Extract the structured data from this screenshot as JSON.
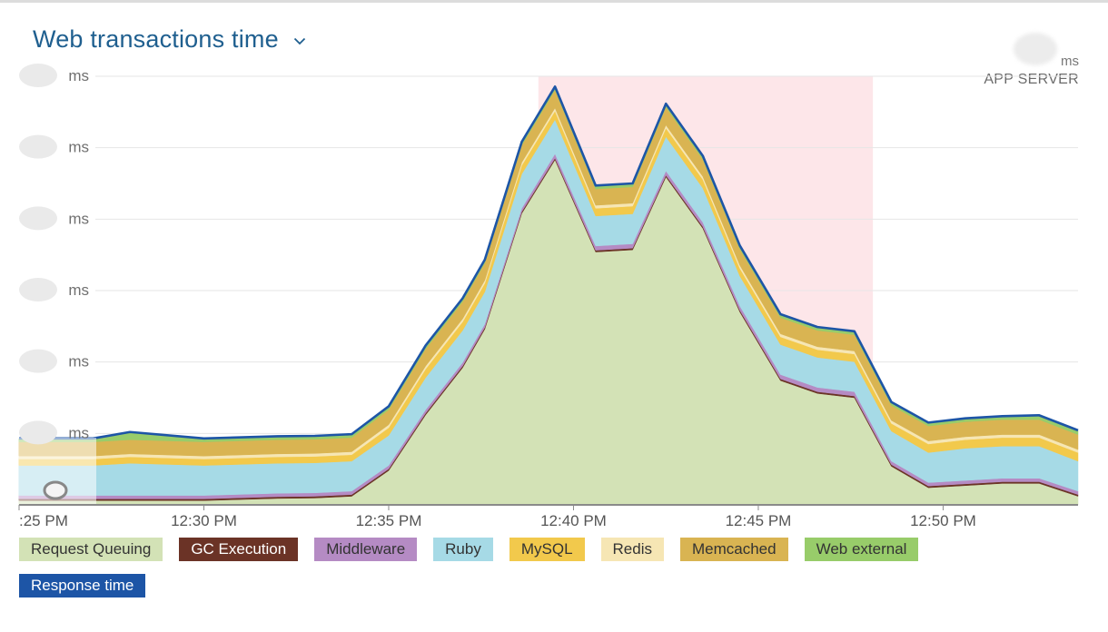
{
  "header": {
    "title": "Web transactions time",
    "summary_unit": "ms",
    "summary_label": "APP SERVER"
  },
  "chart_data": {
    "type": "area",
    "stacked": true,
    "title": "Web transactions time",
    "y_unit": "ms",
    "y_tick_count": 6,
    "x_tick_labels": [
      ":25 PM",
      "12:30 PM",
      "12:35 PM",
      "12:40 PM",
      "12:45 PM",
      "12:50 PM"
    ],
    "x_tick_minutes": [
      25,
      30,
      35,
      40,
      45,
      50
    ],
    "x_range_minutes": [
      25,
      53.65
    ],
    "ylim": [
      0,
      100
    ],
    "highlight_range_minutes": [
      39.05,
      48.1
    ],
    "grid": true,
    "legend_position": "bottom",
    "x_minutes": [
      25,
      27,
      28,
      30,
      32,
      33,
      34,
      35,
      36,
      37,
      37.6,
      38.6,
      39.5,
      40.6,
      41.6,
      42.5,
      43.5,
      44.5,
      45.6,
      46.6,
      47.6,
      48.6,
      49.6,
      50.6,
      51.6,
      52.6,
      53.65
    ],
    "series": [
      {
        "name": "Request Queuing",
        "color": "#d3e2b6",
        "values": [
          1,
          1,
          1,
          1,
          1.5,
          1.6,
          2,
          8,
          21,
          32,
          41,
          68,
          80.5,
          59,
          59.5,
          76.5,
          64.5,
          45,
          29,
          26,
          25,
          9,
          4,
          4.5,
          5,
          5,
          2
        ]
      },
      {
        "name": "GC Execution",
        "color": "#6b3326",
        "values": [
          0.4,
          0.4,
          0.4,
          0.4,
          0.4,
          0.4,
          0.4,
          0.4,
          0.4,
          0.4,
          0.4,
          0.4,
          0.4,
          0.4,
          0.4,
          0.4,
          0.4,
          0.4,
          0.4,
          0.4,
          0.4,
          0.4,
          0.4,
          0.4,
          0.4,
          0.4,
          0.4
        ]
      },
      {
        "name": "Middleware",
        "color": "#b58bc4",
        "values": [
          0.8,
          0.8,
          0.8,
          0.8,
          0.8,
          0.8,
          0.8,
          0.8,
          0.8,
          0.8,
          0.8,
          0.8,
          1,
          1,
          1,
          1,
          1,
          1,
          1,
          1,
          1,
          0.8,
          0.8,
          0.8,
          0.8,
          0.8,
          0.8
        ]
      },
      {
        "name": "Ruby",
        "color": "#a6dae6",
        "values": [
          7,
          7,
          7.5,
          7,
          7,
          7,
          7,
          7,
          7.5,
          7.5,
          7.5,
          8,
          8,
          7,
          7,
          8,
          8,
          7,
          7,
          7,
          7,
          7,
          7,
          7.5,
          7.5,
          7.5,
          7
        ]
      },
      {
        "name": "MySQL",
        "color": "#f2c94c",
        "values": [
          1.5,
          1.5,
          1.5,
          1.5,
          1.5,
          1.5,
          1.5,
          1.8,
          2,
          2,
          2,
          2,
          2,
          1.8,
          1.8,
          2,
          2,
          1.8,
          1.8,
          1.8,
          1.8,
          1.8,
          2,
          2,
          2,
          2,
          2
        ]
      },
      {
        "name": "Redis",
        "color": "#f6e6b4",
        "values": [
          0.7,
          0.7,
          0.7,
          0.7,
          0.7,
          0.7,
          0.7,
          0.7,
          0.7,
          0.7,
          0.7,
          0.7,
          0.7,
          0.7,
          0.7,
          0.7,
          0.7,
          0.7,
          0.7,
          0.7,
          0.7,
          0.7,
          0.7,
          0.7,
          0.7,
          0.7,
          0.7
        ]
      },
      {
        "name": "Memcached",
        "color": "#d9b452",
        "values": [
          3.3,
          3.3,
          3.3,
          3.3,
          3.3,
          3.3,
          3.3,
          3.5,
          4,
          4,
          4,
          4,
          4.2,
          3.8,
          3.8,
          4.2,
          4,
          3.8,
          3.8,
          3.8,
          3.8,
          3.5,
          3.5,
          3.5,
          3.5,
          3.5,
          3.5
        ]
      },
      {
        "name": "Web external",
        "color": "#98cc6a",
        "values": [
          0.8,
          0.8,
          1.8,
          0.8,
          0.8,
          0.8,
          0.8,
          0.8,
          0.8,
          0.8,
          0.8,
          0.8,
          0.8,
          0.8,
          0.8,
          0.8,
          0.8,
          0.8,
          0.8,
          0.8,
          0.8,
          0.8,
          0.8,
          0.8,
          0.8,
          1,
          1
        ]
      }
    ],
    "line_series": {
      "name": "Response time",
      "color": "#1d55a6"
    }
  },
  "legend": [
    {
      "name": "Request Queuing",
      "color": "#d3e2b6",
      "dark": false
    },
    {
      "name": "GC Execution",
      "color": "#6b3326",
      "dark": true
    },
    {
      "name": "Middleware",
      "color": "#b58bc4",
      "dark": false
    },
    {
      "name": "Ruby",
      "color": "#a6dae6",
      "dark": false
    },
    {
      "name": "MySQL",
      "color": "#f2c94c",
      "dark": false
    },
    {
      "name": "Redis",
      "color": "#f6e6b4",
      "dark": false
    },
    {
      "name": "Memcached",
      "color": "#d9b452",
      "dark": false
    },
    {
      "name": "Web external",
      "color": "#98cc6a",
      "dark": false
    },
    {
      "name": "Response time",
      "color": "#1d55a6",
      "dark": true
    }
  ]
}
